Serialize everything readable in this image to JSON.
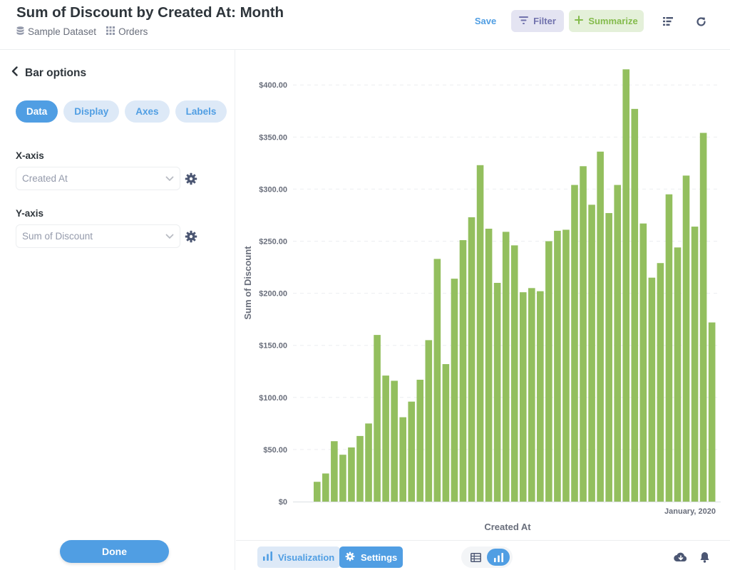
{
  "header": {
    "title": "Sum of Discount by Created At: Month",
    "breadcrumb": [
      {
        "label": "Sample Dataset",
        "icon": "database-icon"
      },
      {
        "label": "Orders",
        "icon": "grid-icon"
      }
    ],
    "save_label": "Save",
    "filter_label": "Filter",
    "summarize_label": "Summarize"
  },
  "sidebar": {
    "back_label": "Bar options",
    "tabs": [
      {
        "label": "Data",
        "active": true
      },
      {
        "label": "Display",
        "active": false
      },
      {
        "label": "Axes",
        "active": false
      },
      {
        "label": "Labels",
        "active": false
      }
    ],
    "x_axis": {
      "label": "X-axis",
      "value": "Created At"
    },
    "y_axis": {
      "label": "Y-axis",
      "value": "Sum of Discount"
    },
    "done_label": "Done"
  },
  "footer": {
    "visualization_label": "Visualization",
    "settings_label": "Settings"
  },
  "colors": {
    "accent": "#509ee3",
    "bar": "#93bf5e",
    "filter": "#7172ad",
    "summarize": "#84bb4c"
  },
  "chart_data": {
    "type": "bar",
    "xlabel": "Created At",
    "ylabel": "Sum of Discount",
    "x_tick_labels": [
      "January, 2020"
    ],
    "y_ticks": [
      "$0",
      "$50.00",
      "$100.00",
      "$150.00",
      "$200.00",
      "$250.00",
      "$300.00",
      "$350.00",
      "$400.00"
    ],
    "ylim": [
      0,
      420
    ],
    "grid": true,
    "series": [
      {
        "values": [
          19,
          27,
          58,
          45,
          52,
          63,
          75,
          160,
          121,
          116,
          81,
          96,
          117,
          155,
          233,
          132,
          214,
          251,
          273,
          323,
          262,
          210,
          259,
          246,
          201,
          205,
          202,
          250,
          260,
          261,
          304,
          322,
          285,
          336,
          277,
          304,
          415,
          377,
          267,
          215,
          229,
          295,
          244,
          313,
          264,
          354,
          172
        ]
      }
    ]
  }
}
